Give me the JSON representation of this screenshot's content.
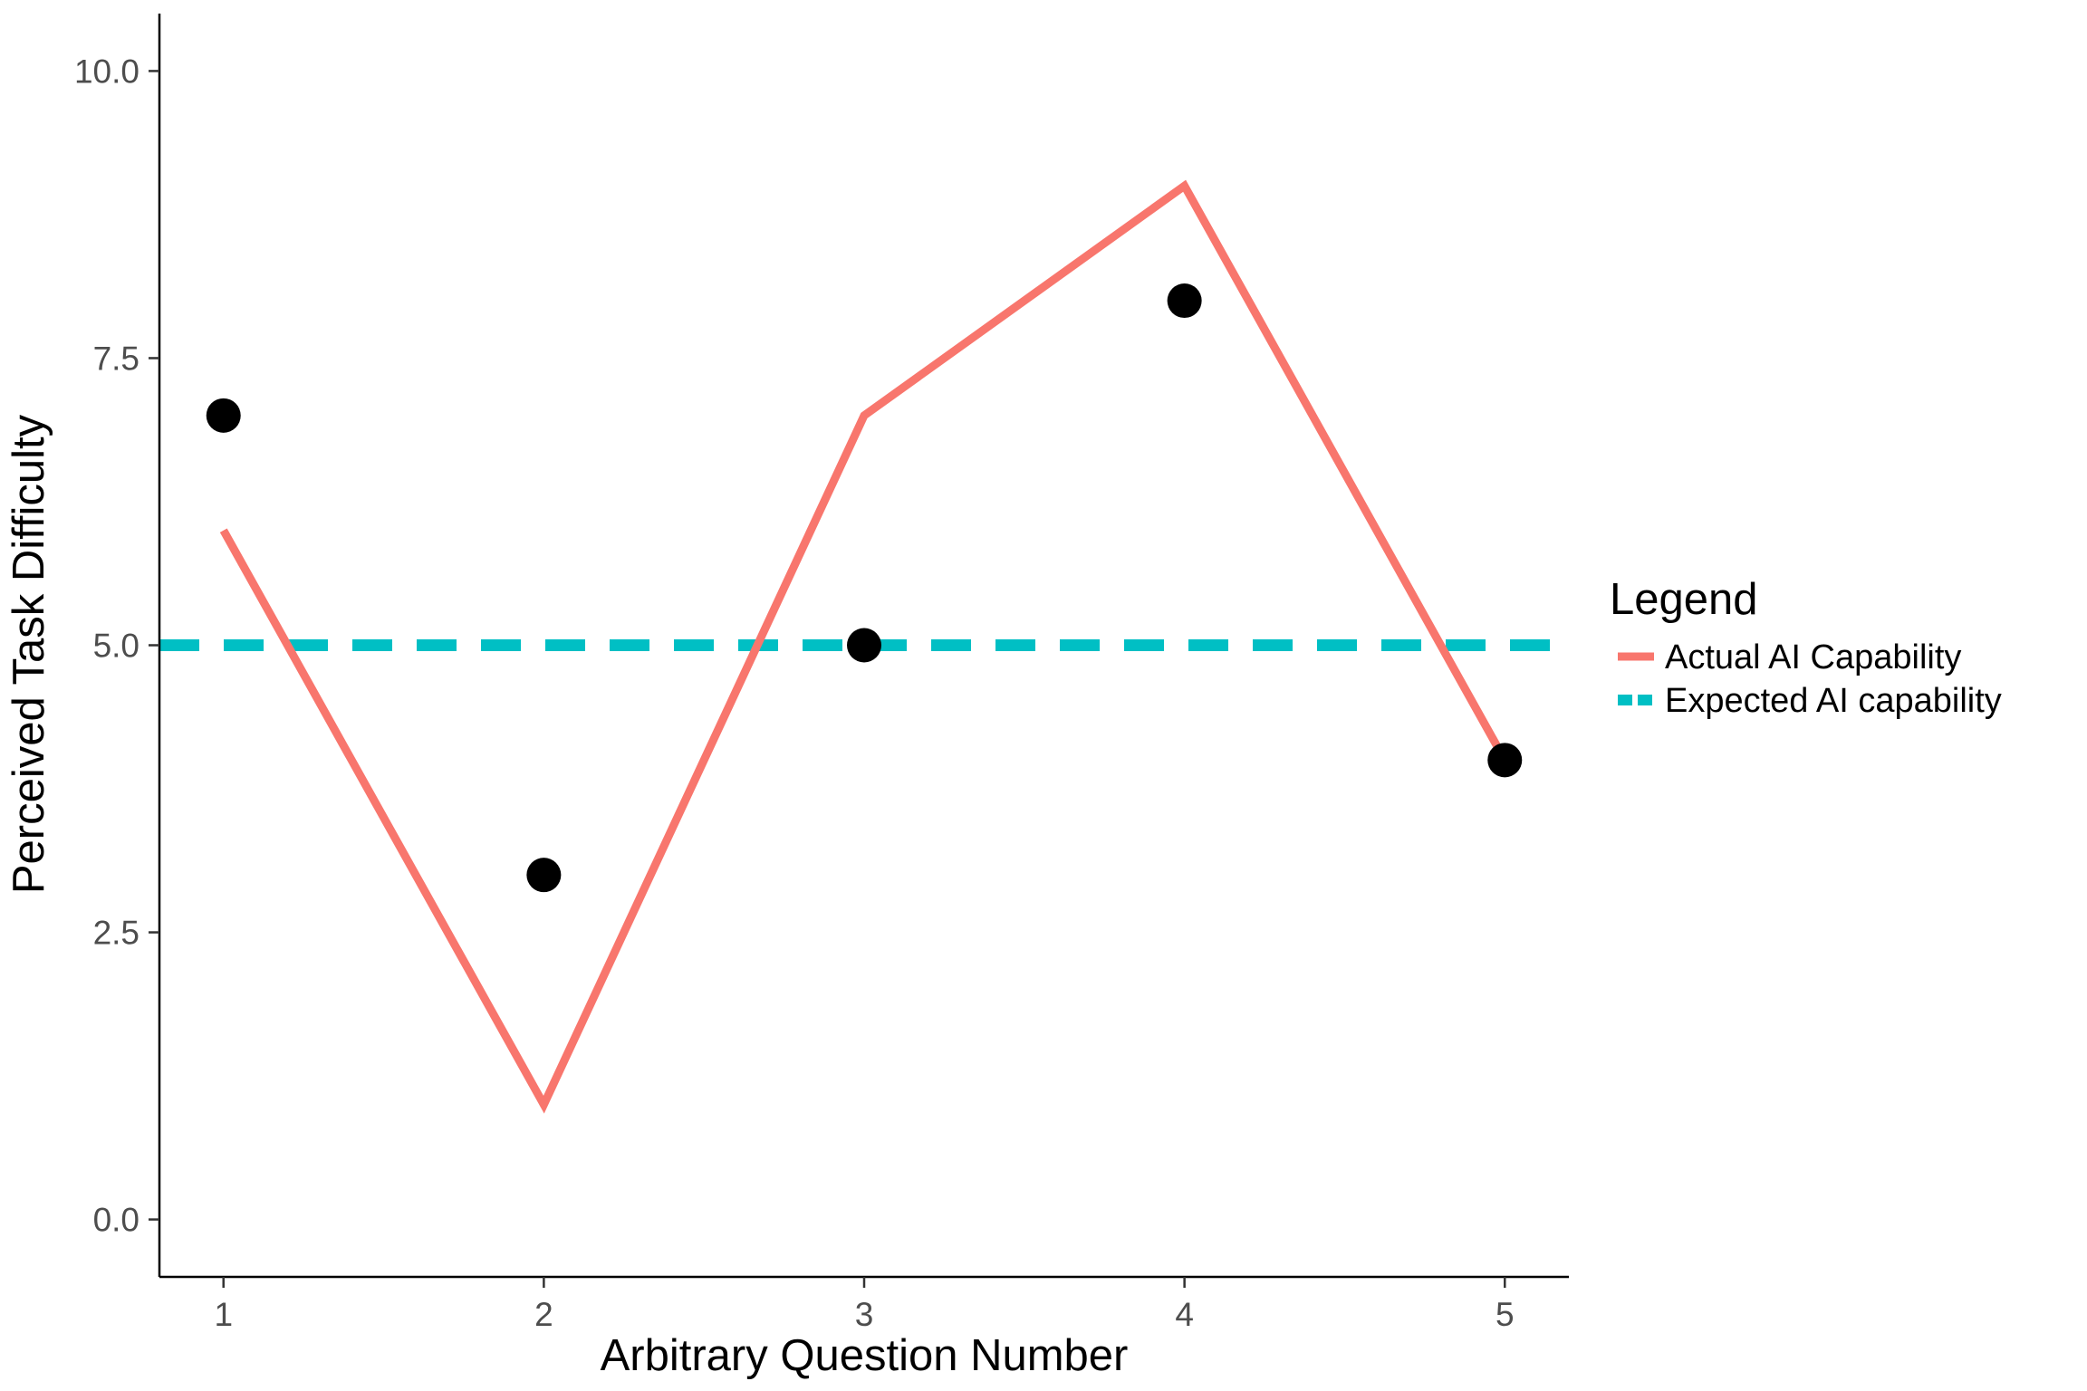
{
  "chart_data": {
    "type": "line",
    "xlabel": "Arbitrary Question Number",
    "ylabel": "Perceived Task Difficulty",
    "x": [
      1,
      2,
      3,
      4,
      5
    ],
    "xticks": [
      "1",
      "2",
      "3",
      "4",
      "5"
    ],
    "yticks": [
      "0.0",
      "2.5",
      "5.0",
      "7.5",
      "10.0"
    ],
    "xlim": [
      0.8,
      5.2
    ],
    "ylim": [
      -0.5,
      10.5
    ],
    "grid": false,
    "legend": {
      "title": "Legend",
      "position": "right"
    },
    "series": [
      {
        "name": "Actual AI Capability",
        "kind": "line",
        "color": "#F8766D",
        "values": [
          6,
          1,
          7,
          9,
          4
        ]
      },
      {
        "name": "Expected AI capability",
        "kind": "dashed-hline",
        "color": "#00BFC4",
        "values": [
          5,
          5,
          5,
          5,
          5
        ]
      },
      {
        "kind": "points",
        "color": "#000000",
        "values": [
          7,
          3,
          5,
          8,
          4
        ]
      }
    ]
  }
}
